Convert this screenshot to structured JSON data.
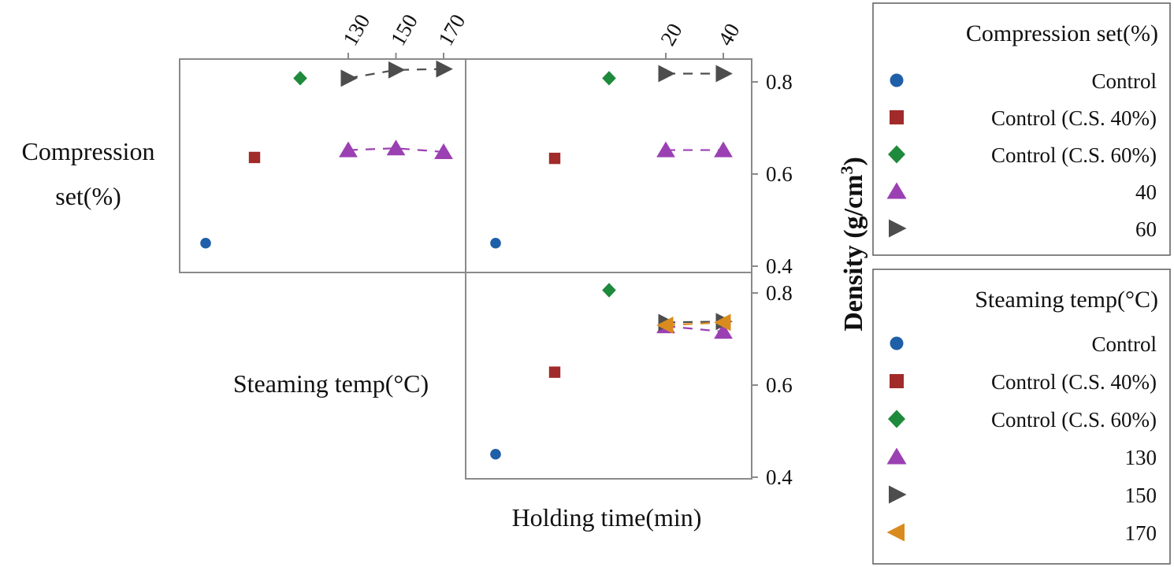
{
  "chart_data": {
    "type": "scatter",
    "y_title": "Density (g/cm",
    "y_title_sup": "3",
    "y_title_close": ")",
    "row_labels": {
      "compression_set_line1": "Compression",
      "compression_set_line2": "set(%)",
      "steaming_temp": "Steaming temp(°C)"
    },
    "x_title_bottom": "Holding time(min)",
    "y_axes": {
      "top": {
        "ylim": [
          0.4,
          0.84
        ],
        "ticks": [
          0.4,
          0.6,
          0.8
        ],
        "tick_labels": [
          "0.4",
          "0.6",
          "0.8"
        ]
      },
      "bottom": {
        "ylim": [
          0.4,
          0.84
        ],
        "ticks": [
          0.4,
          0.6,
          0.8
        ],
        "tick_labels": [
          "0.4",
          "0.6",
          "0.8"
        ]
      }
    },
    "x_top_ticks": {
      "steaming_temp": {
        "values": [
          130,
          150,
          170
        ],
        "labels": [
          "130",
          "150",
          "170"
        ]
      },
      "holding_time": {
        "values": [
          20,
          40
        ],
        "labels": [
          "20",
          "40"
        ]
      }
    },
    "panels": [
      {
        "id": "cs-vs-temp",
        "row": "Compression set(%)",
        "col": "Steaming temp(°C)",
        "controls": [
          {
            "name": "Control",
            "density": 0.45
          },
          {
            "name": "Control (C.S. 40%)",
            "density": 0.636
          },
          {
            "name": "Control (C.S. 60%)",
            "density": 0.808
          }
        ],
        "series": [
          {
            "name": "40",
            "x": [
              130,
              150,
              170
            ],
            "y": [
              0.652,
              0.656,
              0.648
            ]
          },
          {
            "name": "60",
            "x": [
              130,
              150,
              170
            ],
            "y": [
              0.808,
              0.826,
              0.828
            ]
          }
        ]
      },
      {
        "id": "cs-vs-time",
        "row": "Compression set(%)",
        "col": "Holding time(min)",
        "controls": [
          {
            "name": "Control",
            "density": 0.45
          },
          {
            "name": "Control (C.S. 40%)",
            "density": 0.634
          },
          {
            "name": "Control (C.S. 60%)",
            "density": 0.808
          }
        ],
        "series": [
          {
            "name": "40",
            "x": [
              20,
              40
            ],
            "y": [
              0.652,
              0.652
            ]
          },
          {
            "name": "60",
            "x": [
              20,
              40
            ],
            "y": [
              0.818,
              0.818
            ]
          }
        ]
      },
      {
        "id": "temp-vs-time",
        "row": "Steaming temp(°C)",
        "col": "Holding time(min)",
        "controls": [
          {
            "name": "Control",
            "density": 0.45
          },
          {
            "name": "Control (C.S. 40%)",
            "density": 0.628
          },
          {
            "name": "Control (C.S. 60%)",
            "density": 0.806
          }
        ],
        "series": [
          {
            "name": "130",
            "x": [
              20,
              40
            ],
            "y": [
              0.728,
              0.716
            ]
          },
          {
            "name": "150",
            "x": [
              20,
              40
            ],
            "y": [
              0.736,
              0.738
            ]
          },
          {
            "name": "170",
            "x": [
              20,
              40
            ],
            "y": [
              0.73,
              0.736
            ]
          }
        ]
      }
    ],
    "legends": [
      {
        "title": "Compression set(%)",
        "entries": [
          {
            "label": "Control",
            "marker": "circle",
            "color": "#1f5fa8"
          },
          {
            "label": "Control (C.S. 40%)",
            "marker": "square",
            "color": "#a12a2a"
          },
          {
            "label": "Control (C.S. 60%)",
            "marker": "diamond",
            "color": "#1e8a3c"
          },
          {
            "label": "40",
            "marker": "triangle-up",
            "color": "#9b40b3"
          },
          {
            "label": "60",
            "marker": "triangle-right",
            "color": "#4d4d4d"
          }
        ]
      },
      {
        "title": "Steaming temp(°C)",
        "entries": [
          {
            "label": "Control",
            "marker": "circle",
            "color": "#1f5fa8"
          },
          {
            "label": "Control (C.S. 40%)",
            "marker": "square",
            "color": "#a12a2a"
          },
          {
            "label": "Control (C.S. 60%)",
            "marker": "diamond",
            "color": "#1e8a3c"
          },
          {
            "label": "130",
            "marker": "triangle-up",
            "color": "#9b40b3"
          },
          {
            "label": "150",
            "marker": "triangle-right",
            "color": "#4d4d4d"
          },
          {
            "label": "170",
            "marker": "triangle-left",
            "color": "#d98b1e"
          }
        ]
      }
    ]
  }
}
